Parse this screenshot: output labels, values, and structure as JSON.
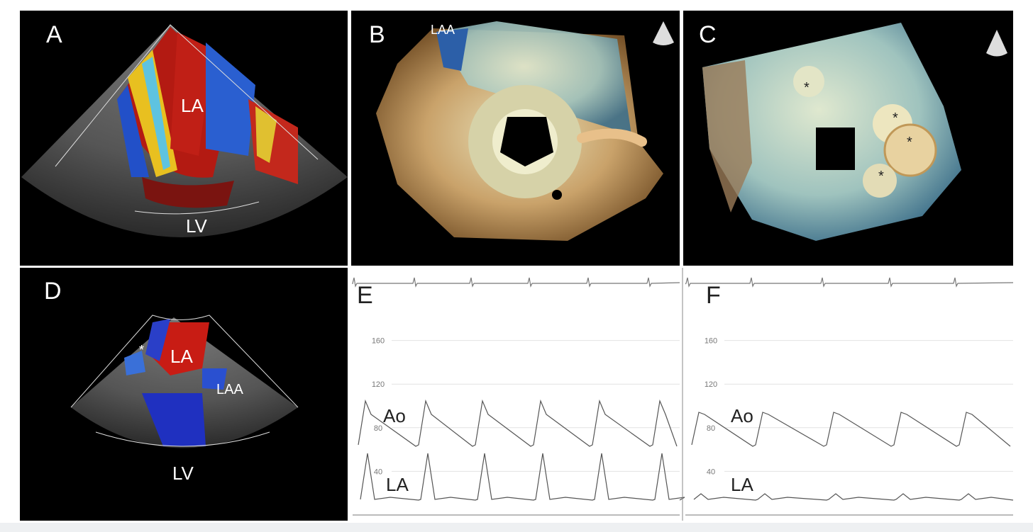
{
  "panels": [
    {
      "letter": "A",
      "labels": [
        "LA",
        "LV"
      ]
    },
    {
      "letter": "B",
      "labels": [
        "LAA"
      ]
    },
    {
      "letter": "C",
      "labels": [
        "*",
        "*",
        "*",
        "*"
      ]
    },
    {
      "letter": "D",
      "labels": [
        "*",
        "LA",
        "LAA",
        "LV"
      ]
    },
    {
      "letter": "E",
      "labels": [
        "Ao",
        "LA"
      ],
      "yticks": [
        160,
        120,
        80,
        40
      ]
    },
    {
      "letter": "F",
      "labels": [
        "Ao",
        "LA"
      ],
      "yticks": [
        160,
        120,
        80,
        40
      ]
    }
  ]
}
